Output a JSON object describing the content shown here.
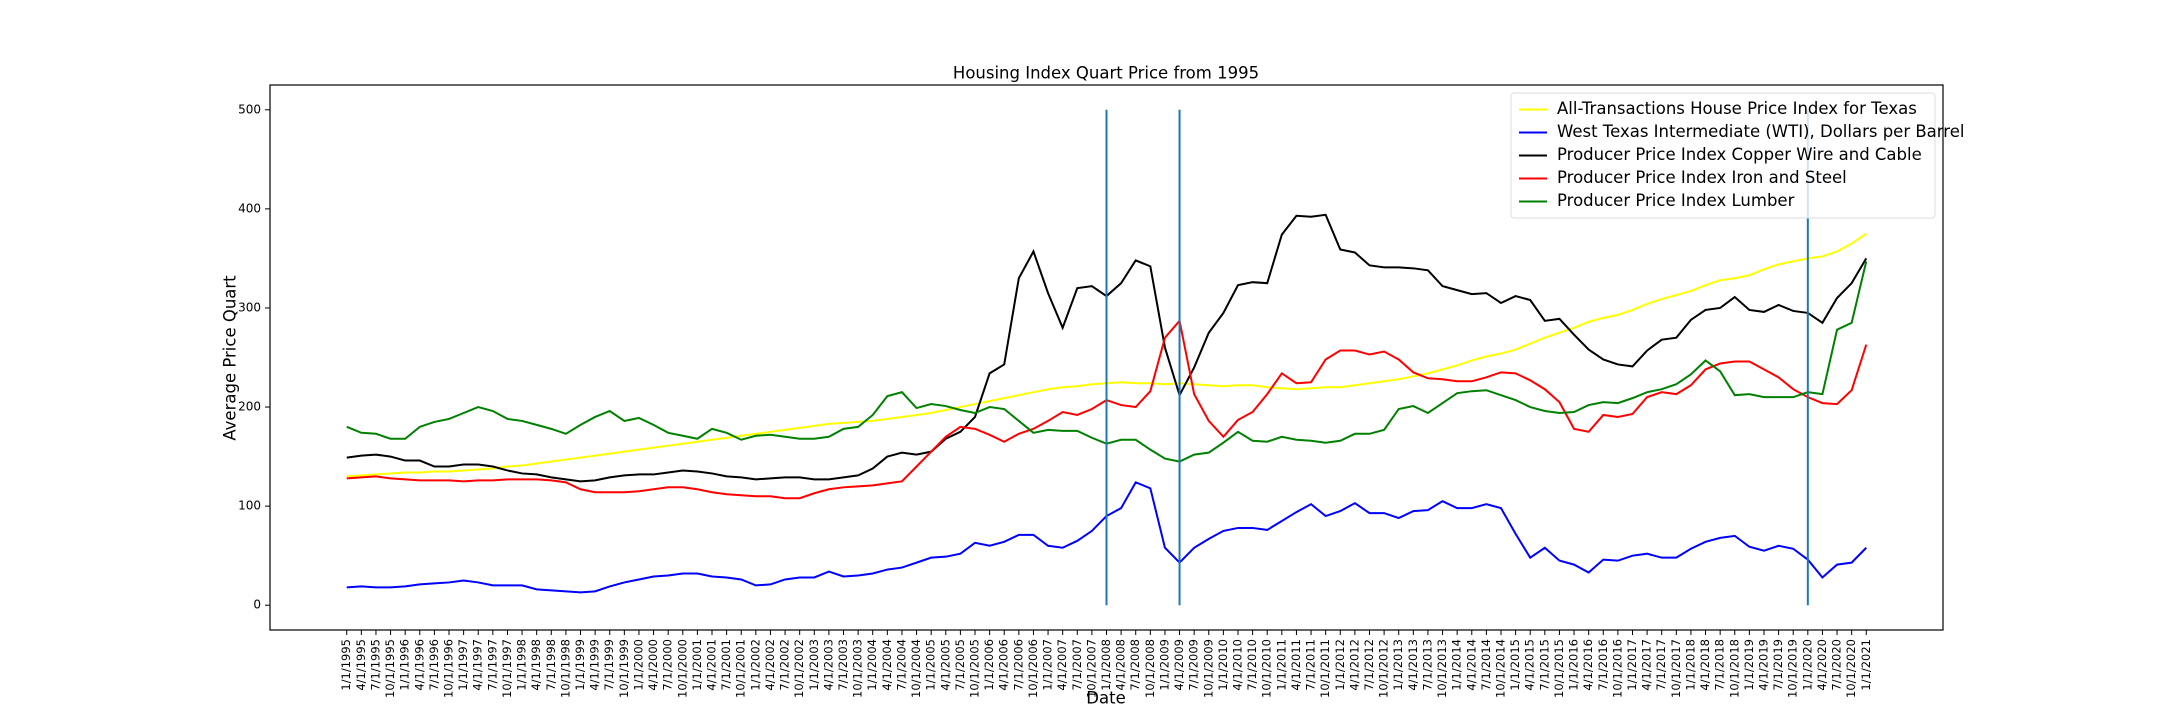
{
  "chart_data": {
    "type": "line",
    "title": "Housing Index Quart Price from 1995",
    "x_label": "Date",
    "y_label": "Average Price Quart",
    "categories": [
      "1/1/1995",
      "4/1/1995",
      "7/1/1995",
      "10/1/1995",
      "1/1/1996",
      "4/1/1996",
      "7/1/1996",
      "10/1/1996",
      "1/1/1997",
      "4/1/1997",
      "7/1/1997",
      "10/1/1997",
      "1/1/1998",
      "4/1/1998",
      "7/1/1998",
      "10/1/1998",
      "1/1/1999",
      "4/1/1999",
      "7/1/1999",
      "10/1/1999",
      "1/1/2000",
      "4/1/2000",
      "7/1/2000",
      "10/1/2000",
      "1/1/2001",
      "4/1/2001",
      "7/1/2001",
      "10/1/2001",
      "1/1/2002",
      "4/1/2002",
      "7/1/2002",
      "10/1/2002",
      "1/1/2003",
      "4/1/2003",
      "7/1/2003",
      "10/1/2003",
      "1/1/2004",
      "4/1/2004",
      "7/1/2004",
      "10/1/2004",
      "1/1/2005",
      "4/1/2005",
      "7/1/2005",
      "10/1/2005",
      "1/1/2006",
      "4/1/2006",
      "7/1/2006",
      "10/1/2006",
      "1/1/2007",
      "4/1/2007",
      "7/1/2007",
      "10/1/2007",
      "1/1/2008",
      "4/1/2008",
      "7/1/2008",
      "10/1/2008",
      "1/1/2009",
      "4/1/2009",
      "7/1/2009",
      "10/1/2009",
      "1/1/2010",
      "4/1/2010",
      "7/1/2010",
      "10/1/2010",
      "1/1/2011",
      "4/1/2011",
      "7/1/2011",
      "10/1/2011",
      "1/1/2012",
      "4/1/2012",
      "7/1/2012",
      "10/1/2012",
      "1/1/2013",
      "4/1/2013",
      "7/1/2013",
      "10/1/2013",
      "1/1/2014",
      "4/1/2014",
      "7/1/2014",
      "10/1/2014",
      "1/1/2015",
      "4/1/2015",
      "7/1/2015",
      "10/1/2015",
      "1/1/2016",
      "4/1/2016",
      "7/1/2016",
      "10/1/2016",
      "1/1/2017",
      "4/1/2017",
      "7/1/2017",
      "10/1/2017",
      "1/1/2018",
      "4/1/2018",
      "7/1/2018",
      "10/1/2018",
      "1/1/2019",
      "4/1/2019",
      "7/1/2019",
      "10/1/2019",
      "1/1/2020",
      "4/1/2020",
      "7/1/2020",
      "10/1/2020",
      "1/1/2021"
    ],
    "series": [
      {
        "name": "All-Transactions House Price Index for Texas",
        "color": "#ffff00",
        "values": [
          130,
          131,
          132,
          133,
          134,
          134,
          135,
          135,
          136,
          137,
          138,
          140,
          141,
          143,
          145,
          147,
          149,
          151,
          153,
          155,
          157,
          159,
          161,
          163,
          165,
          167,
          169,
          171,
          173,
          175,
          177,
          179,
          181,
          183,
          184,
          185,
          186,
          188,
          190,
          192,
          194,
          197,
          200,
          203,
          206,
          209,
          212,
          215,
          218,
          220,
          221,
          223,
          224,
          225,
          224,
          224,
          223,
          224,
          223,
          222,
          221,
          222,
          222,
          220,
          219,
          218,
          219,
          220,
          220,
          222,
          224,
          226,
          228,
          231,
          234,
          238,
          242,
          247,
          251,
          254,
          258,
          264,
          270,
          275,
          280,
          286,
          290,
          293,
          298,
          304,
          309,
          313,
          317,
          323,
          328,
          330,
          333,
          339,
          344,
          347,
          350,
          352,
          357,
          365,
          375
        ]
      },
      {
        "name": "West Texas Intermediate (WTI), Dollars per Barrel",
        "color": "#0000ff",
        "values": [
          18,
          19,
          18,
          18,
          19,
          21,
          22,
          23,
          25,
          23,
          20,
          20,
          20,
          16,
          15,
          14,
          13,
          14,
          19,
          23,
          26,
          29,
          30,
          32,
          32,
          29,
          28,
          26,
          20,
          21,
          26,
          28,
          28,
          34,
          29,
          30,
          32,
          36,
          38,
          43,
          48,
          49,
          52,
          63,
          60,
          64,
          71,
          71,
          60,
          58,
          65,
          75,
          90,
          98,
          124,
          118,
          58,
          43,
          58,
          67,
          75,
          78,
          78,
          76,
          85,
          94,
          102,
          90,
          95,
          103,
          93,
          93,
          88,
          95,
          96,
          105,
          98,
          98,
          102,
          98,
          72,
          48,
          58,
          45,
          41,
          33,
          46,
          45,
          50,
          52,
          48,
          48,
          57,
          64,
          68,
          70,
          59,
          55,
          60,
          57,
          46,
          28,
          41,
          43,
          58
        ]
      },
      {
        "name": "Producer Price Index Copper Wire and Cable",
        "color": "#000000",
        "values": [
          149,
          151,
          152,
          150,
          146,
          146,
          140,
          140,
          142,
          142,
          140,
          136,
          133,
          132,
          129,
          127,
          125,
          126,
          129,
          131,
          132,
          132,
          134,
          136,
          135,
          133,
          130,
          129,
          127,
          128,
          129,
          129,
          127,
          127,
          129,
          131,
          138,
          150,
          154,
          152,
          155,
          168,
          175,
          190,
          234,
          243,
          330,
          357,
          315,
          280,
          320,
          322,
          312,
          325,
          348,
          342,
          260,
          212,
          240,
          275,
          295,
          323,
          326,
          325,
          374,
          393,
          392,
          394,
          359,
          356,
          343,
          341,
          341,
          340,
          338,
          322,
          318,
          314,
          315,
          305,
          312,
          308,
          287,
          289,
          273,
          258,
          248,
          243,
          241,
          257,
          268,
          270,
          288,
          298,
          300,
          311,
          298,
          296,
          303,
          297,
          295,
          285,
          310,
          325,
          350
        ]
      },
      {
        "name": "Producer Price Index Iron and Steel",
        "color": "#ff0000",
        "values": [
          128,
          129,
          130,
          128,
          127,
          126,
          126,
          126,
          125,
          126,
          126,
          127,
          127,
          127,
          126,
          124,
          117,
          114,
          114,
          114,
          115,
          117,
          119,
          119,
          117,
          114,
          112,
          111,
          110,
          110,
          108,
          108,
          113,
          117,
          119,
          120,
          121,
          123,
          125,
          140,
          155,
          170,
          180,
          178,
          172,
          165,
          173,
          178,
          186,
          195,
          192,
          198,
          207,
          202,
          200,
          216,
          270,
          287,
          213,
          186,
          170,
          187,
          195,
          213,
          234,
          224,
          225,
          248,
          257,
          257,
          253,
          256,
          248,
          235,
          229,
          228,
          226,
          226,
          230,
          235,
          234,
          227,
          218,
          205,
          178,
          175,
          192,
          190,
          193,
          210,
          215,
          213,
          222,
          238,
          244,
          246,
          246,
          238,
          230,
          218,
          210,
          204,
          203,
          217,
          263
        ]
      },
      {
        "name": "Producer Price Index Lumber",
        "color": "#008000",
        "values": [
          180,
          174,
          173,
          168,
          168,
          180,
          185,
          188,
          194,
          200,
          196,
          188,
          186,
          182,
          178,
          173,
          182,
          190,
          196,
          186,
          189,
          182,
          174,
          171,
          168,
          178,
          174,
          167,
          171,
          172,
          170,
          168,
          168,
          170,
          178,
          180,
          192,
          211,
          215,
          199,
          203,
          201,
          197,
          194,
          200,
          198,
          186,
          174,
          177,
          176,
          176,
          169,
          163,
          167,
          167,
          157,
          148,
          145,
          152,
          154,
          164,
          175,
          166,
          165,
          170,
          167,
          166,
          164,
          166,
          173,
          173,
          177,
          198,
          201,
          194,
          204,
          214,
          216,
          217,
          212,
          207,
          200,
          196,
          194,
          195,
          202,
          205,
          204,
          209,
          215,
          218,
          223,
          233,
          247,
          236,
          212,
          213,
          210,
          210,
          210,
          215,
          213,
          278,
          285,
          347
        ]
      }
    ],
    "vlines": [
      "1/1/2008",
      "4/1/2009",
      "1/1/2020"
    ],
    "vline_color": "#1f77b4",
    "vline_ylim": [
      0,
      500
    ],
    "ylim": [
      -25,
      525
    ],
    "yticks": [
      0,
      100,
      200,
      300,
      400,
      500
    ],
    "legend": "upper right",
    "grid": false
  }
}
